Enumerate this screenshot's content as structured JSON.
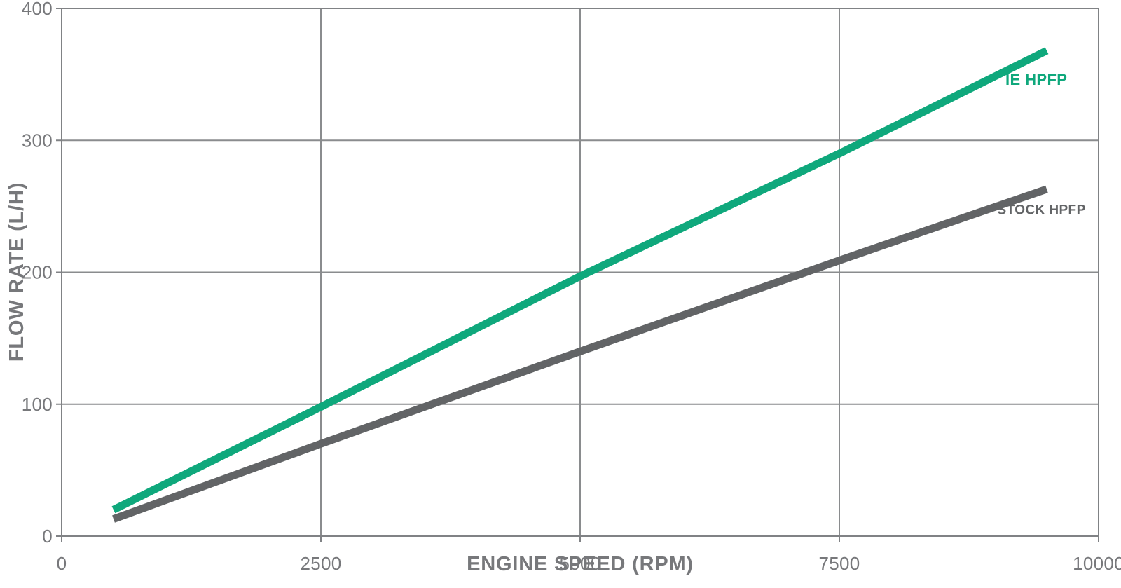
{
  "chart_data": {
    "type": "line",
    "title": "",
    "xlabel": "ENGINE SPEED (RPM)",
    "ylabel": "FLOW RATE (L/H)",
    "xlim": [
      0,
      10000
    ],
    "ylim": [
      0,
      400
    ],
    "x_ticks": [
      0,
      2500,
      5000,
      7500,
      10000
    ],
    "y_ticks": [
      0,
      100,
      200,
      300,
      400
    ],
    "grid": true,
    "legend_position": "inline-end-of-line-labels",
    "background_color": "#FFFFFF",
    "grid_color": "#8A8C8E",
    "axis_color": "#808285",
    "text_color": "#77787B",
    "series": [
      {
        "name": "IE HPFP",
        "color": "#0FA87C",
        "x": [
          500,
          2500,
          5000,
          7500,
          9500
        ],
        "y": [
          20,
          98,
          197,
          290,
          368
        ],
        "label_pos": [
          9400,
          342
        ],
        "label_size": 22
      },
      {
        "name": "STOCK HPFP",
        "color": "#626466",
        "x": [
          500,
          2500,
          5000,
          7500,
          9500
        ],
        "y": [
          13,
          70,
          140,
          209,
          263
        ],
        "label_pos": [
          9450,
          244
        ],
        "label_size": 19
      }
    ]
  }
}
